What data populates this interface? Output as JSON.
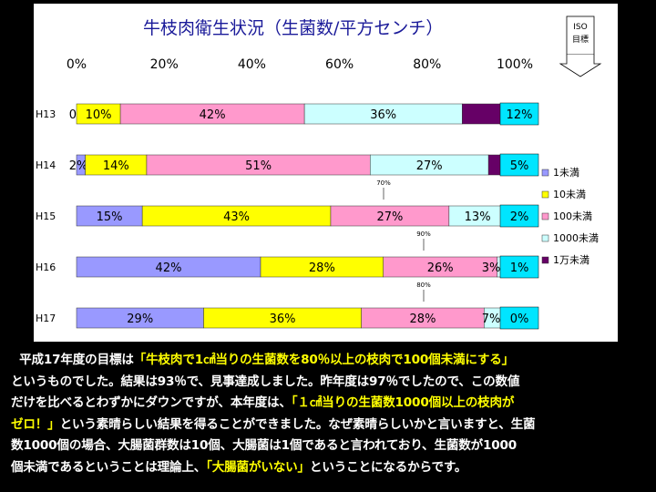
{
  "chart_data": {
    "type": "bar",
    "orientation": "horizontal",
    "stacked": "percent",
    "title": "牛枝肉衛生状況（生菌数/平方センチ）",
    "xlabel": "",
    "ylabel": "",
    "xlim": [
      0,
      100
    ],
    "x_ticks": [
      "0%",
      "20%",
      "40%",
      "60%",
      "80%",
      "100%"
    ],
    "categories": [
      "H13",
      "H14",
      "H15",
      "H16",
      "H17"
    ],
    "series": [
      {
        "name": "1未満",
        "color": "#9999ff",
        "values": [
          0,
          2,
          15,
          42,
          29
        ],
        "labels": [
          "0%",
          "2%",
          "15%",
          "42%",
          "29%"
        ]
      },
      {
        "name": "10未満",
        "color": "#ffff00",
        "values": [
          10,
          14,
          43,
          28,
          36
        ],
        "labels": [
          "10%",
          "14%",
          "43%",
          "28%",
          "36%"
        ]
      },
      {
        "name": "100未満",
        "color": "#ff99cc",
        "values": [
          42,
          51,
          27,
          26,
          28
        ],
        "labels": [
          "42%",
          "51%",
          "27%",
          "26%",
          "28%"
        ]
      },
      {
        "name": "1000未満",
        "color": "#ccffff",
        "values": [
          36,
          27,
          13,
          3,
          7
        ],
        "labels": [
          "36%",
          "27%",
          "13%",
          "3%",
          "7%"
        ]
      },
      {
        "name": "1万未満",
        "color": "#660066",
        "values": [
          12,
          5,
          2,
          1,
          0
        ],
        "labels": [
          "12%",
          "5%",
          "2%",
          "1%",
          "0%"
        ]
      }
    ],
    "annotations": [
      {
        "text": "70%",
        "between": [
          "H14",
          "H15"
        ]
      },
      {
        "text": "90%",
        "between": [
          "H15",
          "H16"
        ]
      },
      {
        "text": "80%",
        "between": [
          "H16",
          "H17"
        ]
      }
    ],
    "target_box": {
      "line1": "ISO",
      "line2": "目標"
    },
    "legend_position": "right",
    "grid": false
  },
  "caption": {
    "l1_a": "平成17年度の目標は",
    "l1_b": "「牛枝肉で1㎠当りの生菌数を80％以上の枝肉で100個未満にする」",
    "l2": "というものでした。結果は93％で、見事達成しました。昨年度は97％でしたので、この数値",
    "l3_a": "だけを比べるとわずかにダウンですが、本年度は、",
    "l3_b": "「１㎠当りの生菌数1000個以上の枝肉が",
    "l4_a": "ゼロ！」",
    "l4_b": "という素晴らしい結果を得ることができました。なぜ素晴らしいかと言いますと、生菌",
    "l5": "数1000個の場合、大腸菌群数は10個、大腸菌は1個であると言われており、生菌数が1000",
    "l6_a": "個未満であるということは理論上、",
    "l6_b": "「大腸菌がいない」",
    "l6_c": "ということになるからです。"
  }
}
